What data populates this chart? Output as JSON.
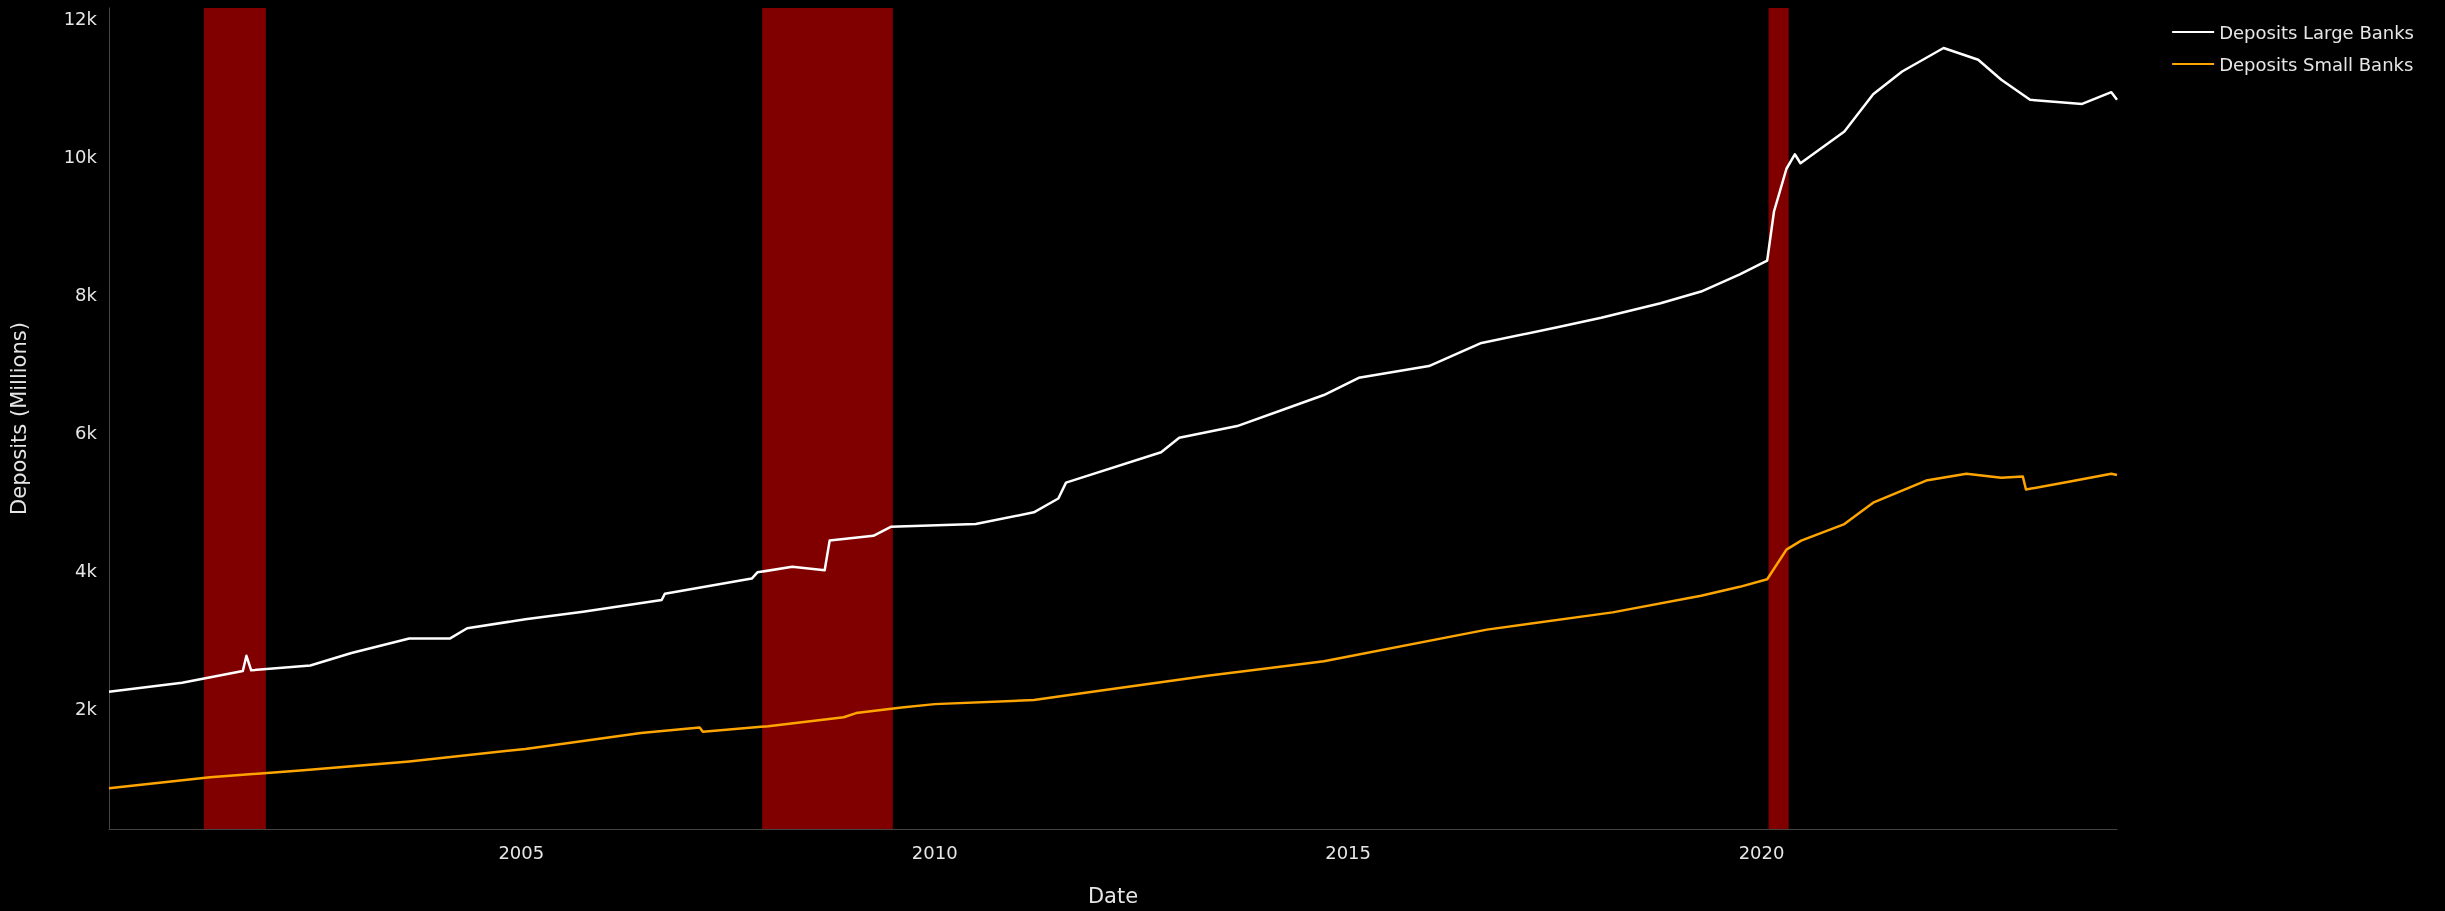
{
  "chart_data": {
    "type": "line",
    "xlabel": "Date",
    "ylabel": "Deposits (Millions)",
    "xlim": [
      "2000-01-07",
      "2024-04-19"
    ],
    "xticks": [
      "2005",
      "2010",
      "2015",
      "2020"
    ],
    "ylim": [
      250,
      12150
    ],
    "yticks": [
      {
        "value": 2000,
        "label": "2k"
      },
      {
        "value": 4000,
        "label": "4k"
      },
      {
        "value": 6000,
        "label": "6k"
      },
      {
        "value": 8000,
        "label": "8k"
      },
      {
        "value": 10000,
        "label": "10k"
      },
      {
        "value": 12000,
        "label": "12k"
      }
    ],
    "grid": false,
    "legend": "top right",
    "marker": "none",
    "line_style": "solid",
    "bands": [
      {
        "axis": "x",
        "from": "2001-03-01",
        "to": "2001-11-30",
        "color": "#800000"
      },
      {
        "axis": "x",
        "from": "2007-12-01",
        "to": "2009-06-30",
        "color": "#800000"
      },
      {
        "axis": "x",
        "from": "2020-02-01",
        "to": "2020-04-30",
        "color": "#800000"
      }
    ],
    "series": [
      {
        "name": "Deposits Large Banks",
        "color": "#ffffff",
        "x": [
          "2000-01-07",
          "2000-11-25",
          "2001-08-20",
          "2001-09-05",
          "2001-09-26",
          "2002-06-14",
          "2002-12-13",
          "2003-08-25",
          "2004-02-20",
          "2004-05-07",
          "2005-01-19",
          "2005-10-01",
          "2006-09-13",
          "2006-09-27",
          "2007-10-16",
          "2007-11-10",
          "2008-04-12",
          "2008-09-02",
          "2008-09-24",
          "2009-04-05",
          "2009-06-21",
          "2010-07-01",
          "2011-03-15",
          "2011-07-01",
          "2011-08-04",
          "2012-09-27",
          "2012-12-16",
          "2013-08-29",
          "2014-09-16",
          "2015-02-17",
          "2015-12-24",
          "2016-08-07",
          "2017-07-08",
          "2018-01-23",
          "2018-10-12",
          "2019-04-09",
          "2019-09-27",
          "2020-01-26",
          "2020-02-25",
          "2020-04-20",
          "2020-05-27",
          "2020-06-21",
          "2021-01-01",
          "2021-05-08",
          "2021-09-13",
          "2022-03-15",
          "2022-08-15",
          "2022-11-25",
          "2023-04-01",
          "2023-11-17",
          "2024-03-25",
          "2024-04-19"
        ],
        "values": [
          2240,
          2370,
          2540,
          2760,
          2550,
          2620,
          2800,
          3010,
          3010,
          3160,
          3290,
          3400,
          3570,
          3660,
          3880,
          3970,
          4050,
          4000,
          4430,
          4500,
          4630,
          4670,
          4840,
          5040,
          5270,
          5710,
          5920,
          6090,
          6540,
          6790,
          6960,
          7290,
          7520,
          7660,
          7870,
          8040,
          8290,
          8490,
          9200,
          9820,
          10030,
          9900,
          10360,
          10900,
          11230,
          11570,
          11400,
          11110,
          10820,
          10760,
          10930,
          10820
        ]
      },
      {
        "name": "Deposits Small Banks",
        "color": "#ffa500",
        "x": [
          "2000-01-07",
          "2001-03-28",
          "2002-05-15",
          "2003-08-25",
          "2005-01-19",
          "2006-06-13",
          "2007-02-28",
          "2007-03-14",
          "2007-12-28",
          "2008-11-25",
          "2009-01-19",
          "2009-08-08",
          "2010-01-01",
          "2011-03-15",
          "2012-01-15",
          "2013-04-20",
          "2014-09-16",
          "2016-09-05",
          "2018-03-14",
          "2019-04-09",
          "2019-09-27",
          "2020-01-26",
          "2020-04-20",
          "2020-06-24",
          "2021-01-01",
          "2021-05-08",
          "2021-12-28",
          "2022-06-24",
          "2022-11-25",
          "2023-02-28",
          "2023-03-14",
          "2023-09-13",
          "2024-03-25",
          "2024-04-19"
        ],
        "values": [
          840,
          1000,
          1100,
          1230,
          1410,
          1640,
          1720,
          1660,
          1740,
          1870,
          1930,
          2010,
          2060,
          2120,
          2260,
          2470,
          2680,
          3140,
          3390,
          3630,
          3760,
          3870,
          4300,
          4430,
          4670,
          4980,
          5300,
          5400,
          5340,
          5360,
          5170,
          5280,
          5400,
          5380
        ]
      }
    ]
  }
}
